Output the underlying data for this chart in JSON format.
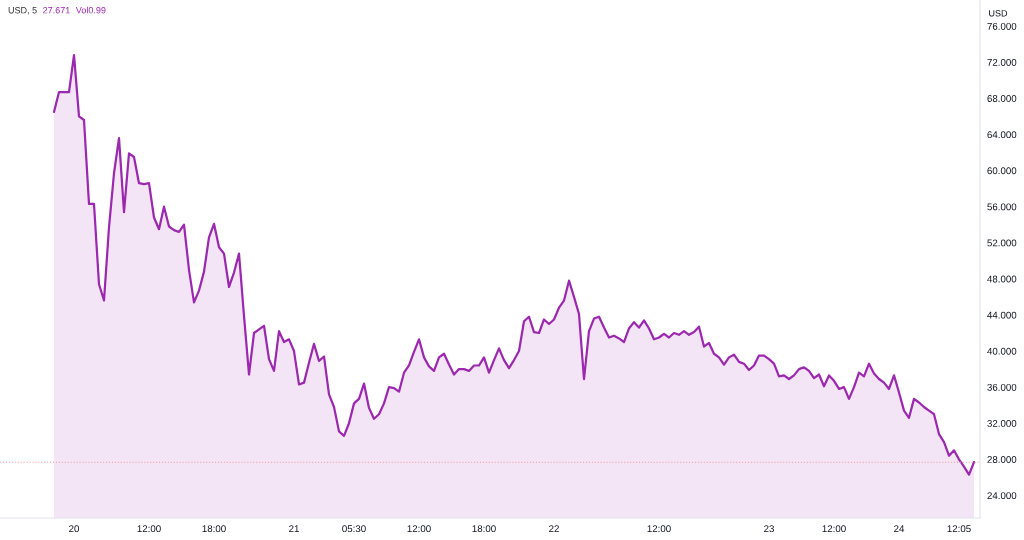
{
  "chart_data": {
    "type": "area",
    "title": "USD, 5",
    "ylabel": "USD",
    "annotations": [
      "27.671",
      "Vol0.99"
    ],
    "categories": [
      null,
      null,
      null,
      null,
      "20",
      null,
      null,
      null,
      null,
      null,
      null,
      null,
      null,
      null,
      null,
      null,
      null,
      null,
      null,
      "12:00",
      null,
      null,
      null,
      null,
      null,
      null,
      null,
      null,
      null,
      null,
      null,
      null,
      "18:00",
      null,
      null,
      null,
      null,
      null,
      null,
      null,
      null,
      null,
      null,
      null,
      null,
      null,
      null,
      null,
      "21",
      null,
      null,
      null,
      null,
      null,
      null,
      null,
      null,
      null,
      null,
      null,
      "05:30",
      null,
      null,
      null,
      null,
      null,
      null,
      null,
      null,
      null,
      null,
      null,
      null,
      "12:00",
      null,
      null,
      null,
      null,
      null,
      null,
      null,
      null,
      null,
      null,
      null,
      null,
      "18:00",
      null,
      null,
      null,
      null,
      null,
      null,
      null,
      null,
      null,
      null,
      null,
      null,
      null,
      "22",
      null,
      null,
      null,
      null,
      null,
      null,
      null,
      null,
      null,
      null,
      null,
      null,
      null,
      null,
      null,
      null,
      null,
      null,
      null,
      null,
      "12:00",
      null,
      null,
      null,
      null,
      null,
      null,
      null,
      null,
      null,
      null,
      null,
      null,
      null,
      null,
      null,
      null,
      null,
      null,
      null,
      null,
      null,
      "23",
      null,
      null,
      null,
      null,
      null,
      null,
      null,
      null,
      null,
      null,
      null,
      null,
      "12:00",
      null,
      null,
      null,
      null,
      null,
      null,
      null,
      null,
      null,
      null,
      null,
      null,
      "24",
      null,
      null,
      null,
      null,
      null,
      null,
      null,
      null,
      null,
      null,
      null,
      "12:05",
      null,
      null,
      null
    ],
    "series": [
      {
        "color": "#9c27b0",
        "values": [
          66.5,
          68.7,
          68.7,
          68.7,
          72.8,
          66.0,
          65.6,
          56.3,
          56.3,
          47.4,
          45.6,
          53.7,
          59.7,
          63.6,
          55.4,
          61.9,
          61.5,
          58.6,
          58.5,
          58.6,
          54.8,
          53.5,
          56.0,
          53.8,
          53.4,
          53.2,
          54.0,
          49.0,
          45.4,
          46.7,
          48.8,
          52.6,
          54.1,
          51.5,
          50.8,
          47.1,
          48.7,
          50.8,
          43.9,
          37.4,
          42.0,
          42.4,
          42.8,
          39.1,
          37.8,
          42.2,
          41.0,
          41.3,
          40.0,
          36.3,
          36.5,
          38.7,
          40.8,
          38.9,
          39.4,
          35.2,
          33.8,
          31.1,
          30.6,
          32.0,
          34.2,
          34.7,
          36.4,
          33.7,
          32.5,
          33.0,
          34.2,
          36.0,
          35.9,
          35.5,
          37.6,
          38.4,
          39.9,
          41.3,
          39.3,
          38.3,
          37.8,
          39.3,
          39.7,
          38.5,
          37.4,
          38.0,
          38.0,
          37.8,
          38.4,
          38.4,
          39.3,
          37.6,
          39.0,
          40.3,
          39.0,
          38.1,
          39.0,
          40.0,
          43.3,
          43.8,
          42.1,
          42.0,
          43.5,
          43.0,
          43.5,
          44.8,
          45.6,
          47.8,
          46.0,
          44.1,
          36.9,
          42.2,
          43.6,
          43.8,
          42.6,
          41.5,
          41.7,
          41.4,
          41.0,
          42.5,
          43.2,
          42.6,
          43.4,
          42.5,
          41.3,
          41.5,
          41.9,
          41.5,
          42.0,
          41.8,
          42.2,
          41.8,
          42.1,
          42.7,
          40.5,
          40.9,
          39.7,
          39.3,
          38.5,
          39.3,
          39.6,
          38.8,
          38.6,
          37.9,
          38.4,
          39.5,
          39.5,
          39.1,
          38.6,
          37.2,
          37.3,
          36.9,
          37.3,
          38.0,
          38.2,
          37.8,
          37.0,
          37.4,
          36.1,
          37.3,
          36.7,
          35.8,
          36.0,
          34.7,
          36.0,
          37.6,
          37.2,
          38.6,
          37.5,
          36.9,
          36.5,
          35.8,
          37.3,
          35.4,
          33.4,
          32.6,
          34.7,
          34.3,
          33.8,
          33.4,
          33.0,
          30.8,
          29.9,
          28.4,
          29.0,
          28.0,
          27.2,
          26.3,
          27.7
        ]
      }
    ],
    "ylim": [
      21.5,
      78.9
    ],
    "yticks": [
      {
        "value": 24,
        "label": "24.000"
      },
      {
        "value": 28,
        "label": "28.000"
      },
      {
        "value": 32,
        "label": "32.000"
      },
      {
        "value": 36,
        "label": "36.000"
      },
      {
        "value": 40,
        "label": "40.000"
      },
      {
        "value": 44,
        "label": "44.000"
      },
      {
        "value": 48,
        "label": "48.000"
      },
      {
        "value": 52,
        "label": "52.000"
      },
      {
        "value": 56,
        "label": "56.000"
      },
      {
        "value": 60,
        "label": "60.000"
      },
      {
        "value": 64,
        "label": "64.000"
      },
      {
        "value": 68,
        "label": "68.000"
      },
      {
        "value": 72,
        "label": "72.000"
      },
      {
        "value": 76,
        "label": "76.000"
      }
    ],
    "ref_lines": [
      {
        "axis": "y",
        "value": 27.671,
        "color": "#ef9a9a",
        "line_style": "dotted"
      }
    ],
    "grid": false
  }
}
